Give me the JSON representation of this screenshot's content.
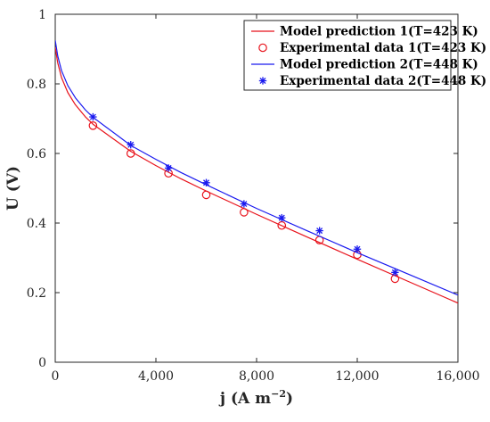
{
  "chart_data": {
    "type": "line",
    "xlabel": "j (A m",
    "xlabel_sup": "−2",
    "xlabel_end": ")",
    "ylabel": "U (V)",
    "xlim": [
      0,
      16000
    ],
    "ylim": [
      0,
      1
    ],
    "xticks": [
      0,
      4000,
      8000,
      12000,
      16000
    ],
    "xtick_labels": [
      "0",
      "4,000",
      "8,000",
      "12,000",
      "16,000"
    ],
    "yticks": [
      0,
      0.2,
      0.4,
      0.6,
      0.8,
      1
    ],
    "ytick_labels": [
      "0",
      "0.2",
      "0.4",
      "0.6",
      "0.8",
      "1"
    ],
    "grid": false,
    "legend_position": "top-right",
    "series": [
      {
        "name": "Model prediction 1(T=423 K)",
        "kind": "line",
        "color": "#e8121b",
        "x": [
          0,
          100,
          250,
          500,
          800,
          1200,
          1500,
          2000,
          3000,
          4000,
          5000,
          6000,
          8000,
          10000,
          12000,
          14000,
          16000
        ],
        "y": [
          0.905,
          0.86,
          0.818,
          0.775,
          0.74,
          0.705,
          0.684,
          0.658,
          0.606,
          0.565,
          0.527,
          0.492,
          0.425,
          0.36,
          0.296,
          0.233,
          0.17
        ]
      },
      {
        "name": "Experimental data 1(T=423 K)",
        "kind": "marker",
        "marker": "circle",
        "color": "#e8121b",
        "x": [
          1500,
          3000,
          4500,
          6000,
          7500,
          9000,
          10500,
          12000,
          13500
        ],
        "y": [
          0.68,
          0.6,
          0.543,
          0.481,
          0.431,
          0.393,
          0.351,
          0.309,
          0.24
        ]
      },
      {
        "name": "Model prediction 2(T=448 K)",
        "kind": "line",
        "color": "#1a1aef",
        "x": [
          0,
          100,
          250,
          500,
          800,
          1200,
          1500,
          2000,
          3000,
          4000,
          5000,
          6000,
          8000,
          10000,
          12000,
          14000,
          16000
        ],
        "y": [
          0.925,
          0.88,
          0.838,
          0.795,
          0.76,
          0.725,
          0.704,
          0.677,
          0.623,
          0.583,
          0.545,
          0.51,
          0.442,
          0.378,
          0.315,
          0.254,
          0.193
        ]
      },
      {
        "name": "Experimental data 2(T=448 K)",
        "kind": "marker",
        "marker": "asterisk",
        "color": "#1a1aef",
        "x": [
          1500,
          3000,
          4500,
          6000,
          7500,
          9000,
          10500,
          12000,
          13500
        ],
        "y": [
          0.705,
          0.625,
          0.558,
          0.516,
          0.455,
          0.415,
          0.378,
          0.325,
          0.258
        ]
      }
    ]
  }
}
